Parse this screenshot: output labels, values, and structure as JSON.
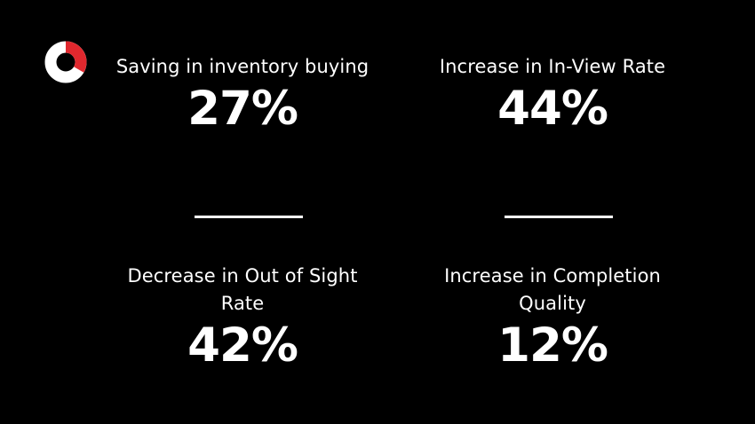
{
  "brand": {
    "logo_icon": "ring-logo-icon",
    "colors": {
      "background": "#000000",
      "text": "#ffffff",
      "accent": "#e0282e"
    }
  },
  "stats": [
    {
      "label": "Saving in inventory buying",
      "value": "27%"
    },
    {
      "label": "Increase in In-View Rate",
      "value": "44%"
    },
    {
      "label": "Decrease in Out of Sight Rate",
      "value": "42%"
    },
    {
      "label": "Increase in Completion Quality",
      "value": "12%"
    }
  ]
}
